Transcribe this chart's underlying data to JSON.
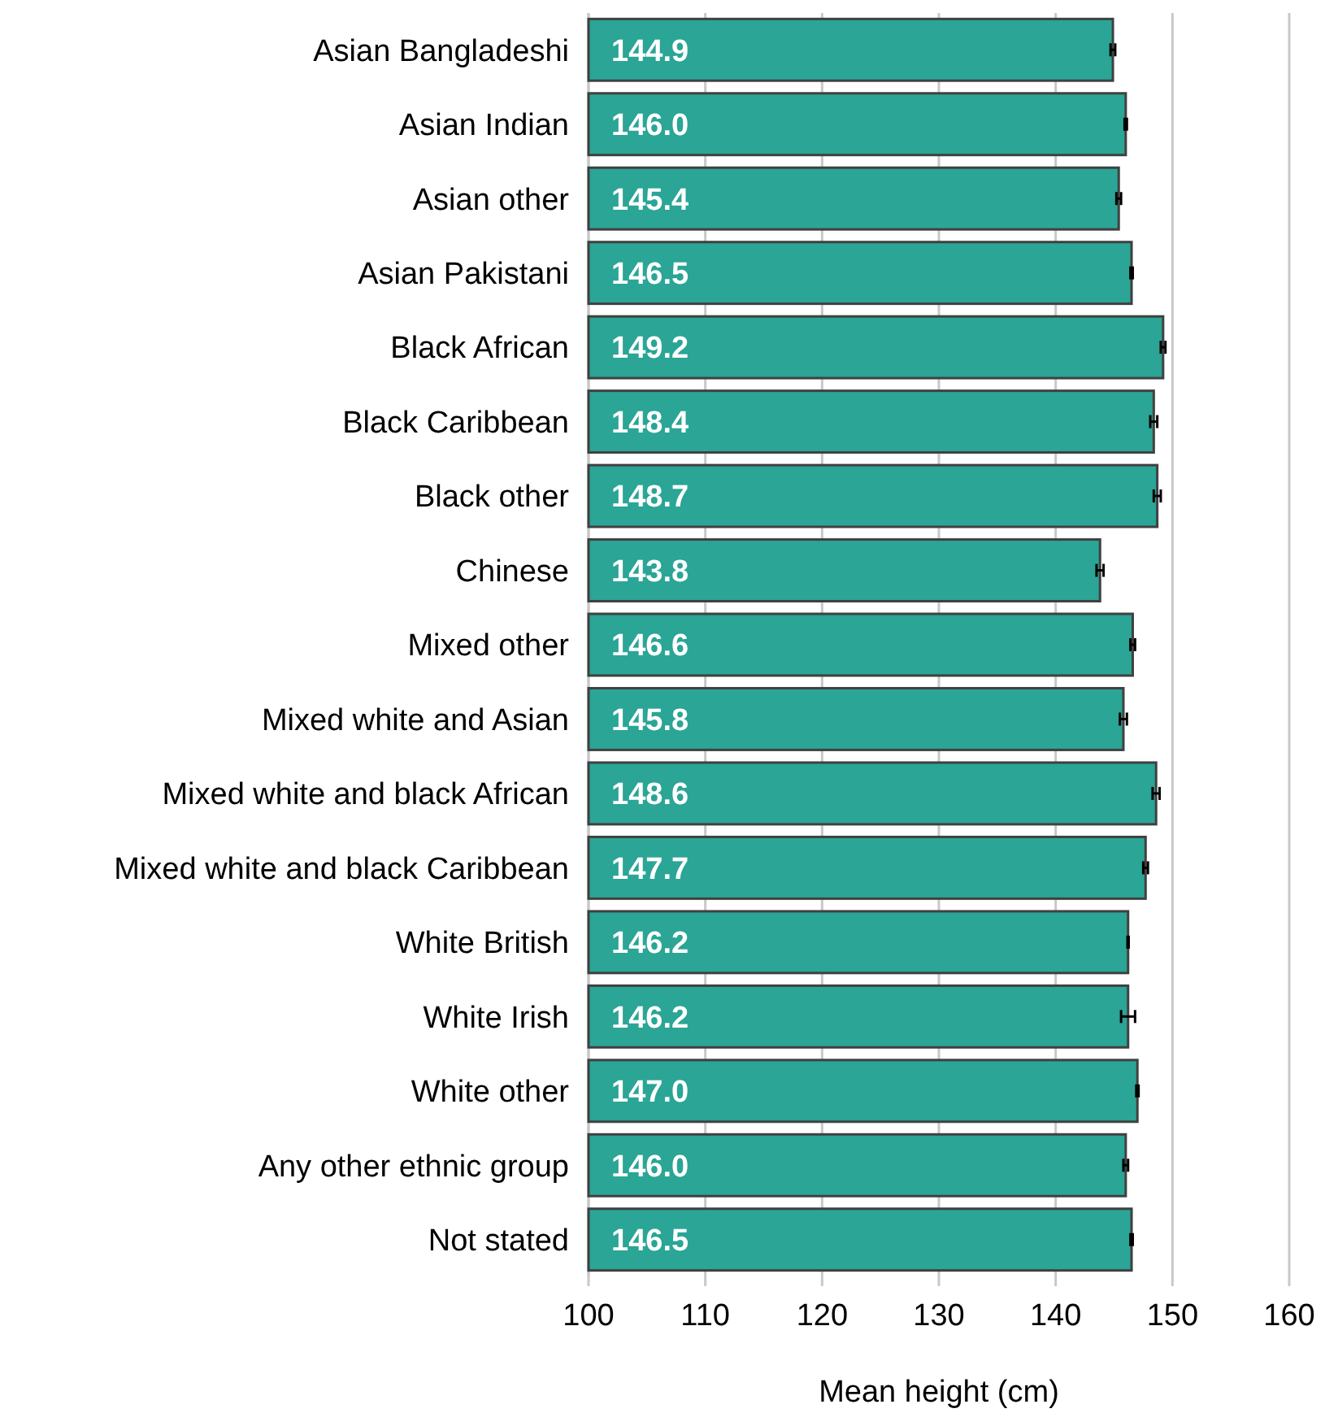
{
  "chart_data": {
    "type": "bar",
    "orientation": "horizontal",
    "xlabel": "Mean height (cm)",
    "categories": [
      "Asian Bangladeshi",
      "Asian Indian",
      "Asian other",
      "Asian Pakistani",
      "Black African",
      "Black Caribbean",
      "Black other",
      "Chinese",
      "Mixed other",
      "Mixed white and Asian",
      "Mixed white and black African",
      "Mixed white and black Caribbean",
      "White British",
      "White Irish",
      "White other",
      "Any other ethnic group",
      "Not stated"
    ],
    "values": [
      144.9,
      146.0,
      145.4,
      146.5,
      149.2,
      148.4,
      148.7,
      143.8,
      146.6,
      145.8,
      148.6,
      147.7,
      146.2,
      146.2,
      147.0,
      146.0,
      146.5
    ],
    "errors": [
      0.2,
      0.1,
      0.2,
      0.1,
      0.2,
      0.3,
      0.3,
      0.3,
      0.2,
      0.3,
      0.3,
      0.2,
      0.05,
      0.6,
      0.1,
      0.2,
      0.1
    ],
    "value_labels": [
      "144.9",
      "146.0",
      "145.4",
      "146.5",
      "149.2",
      "148.4",
      "148.7",
      "143.8",
      "146.6",
      "145.8",
      "148.6",
      "147.7",
      "146.2",
      "146.2",
      "147.0",
      "146.0",
      "146.5"
    ],
    "color": "#2aa596",
    "grid": "x",
    "xlim": [
      100,
      160
    ],
    "xticks": [
      100,
      110,
      120,
      130,
      140,
      150,
      160
    ]
  }
}
